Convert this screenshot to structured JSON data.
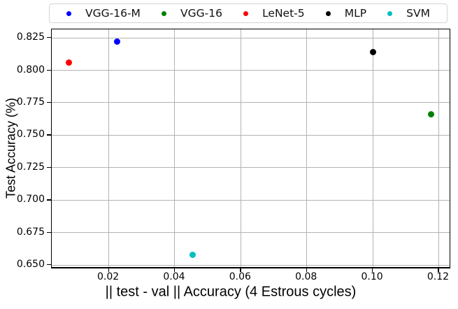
{
  "chart_data": {
    "type": "scatter",
    "title": "",
    "xlabel": "|| test - val || Accuracy (4 Estrous cycles)",
    "ylabel": "Test Accuracy (%)",
    "xlim": [
      0.0027,
      0.1233
    ],
    "ylim": [
      0.6485,
      0.8315
    ],
    "grid": true,
    "legend_position": "top",
    "xticks": {
      "values": [
        0.02,
        0.04,
        0.06,
        0.08,
        0.1,
        0.12
      ],
      "labels": [
        "0.02",
        "0.04",
        "0.06",
        "0.08",
        "0.10",
        "0.12"
      ]
    },
    "yticks": {
      "values": [
        0.65,
        0.675,
        0.7,
        0.725,
        0.75,
        0.775,
        0.8,
        0.825
      ],
      "labels": [
        "0.650",
        "0.675",
        "0.700",
        "0.725",
        "0.750",
        "0.775",
        "0.800",
        "0.825"
      ]
    },
    "series": [
      {
        "name": "VGG-16-M",
        "color": "#0000ff",
        "points": [
          [
            0.0226,
            0.822
          ]
        ]
      },
      {
        "name": "VGG-16",
        "color": "#008000",
        "points": [
          [
            0.1176,
            0.766
          ]
        ]
      },
      {
        "name": "LeNet-5",
        "color": "#ff0000",
        "points": [
          [
            0.0078,
            0.806
          ]
        ]
      },
      {
        "name": "MLP",
        "color": "#000000",
        "points": [
          [
            0.1,
            0.814
          ]
        ]
      },
      {
        "name": "SVM",
        "color": "#00bfbf",
        "points": [
          [
            0.0455,
            0.658
          ]
        ]
      }
    ],
    "colors": {
      "grid": "#b3b3b3",
      "spine": "#000000",
      "background": "#ffffff"
    }
  }
}
